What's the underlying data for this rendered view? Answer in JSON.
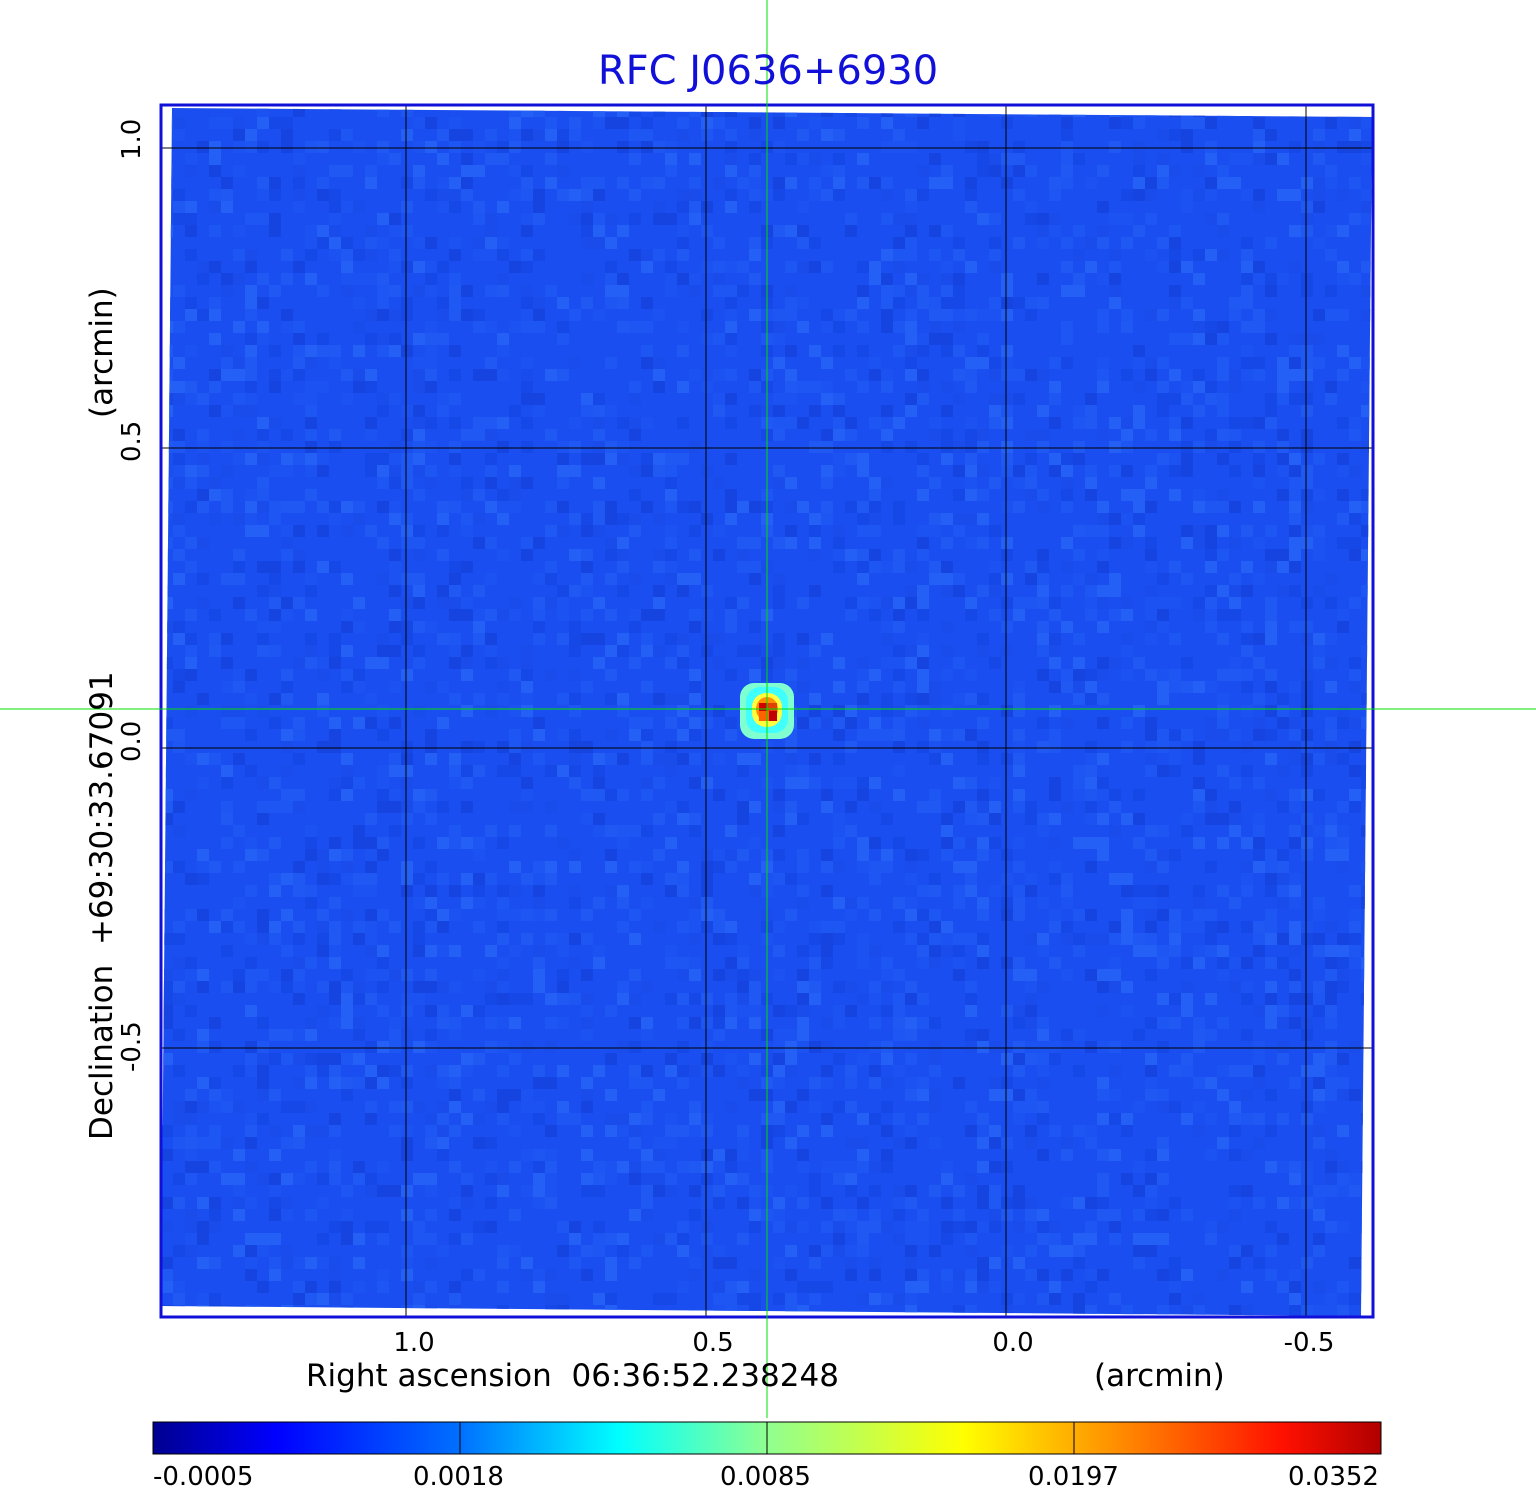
{
  "title": "RFC J0636+6930",
  "x_axis": {
    "label_prefix": "Right ascension",
    "center_value": "06:36:52.238248",
    "unit": "(arcmin)",
    "ticks": [
      "1.0",
      "0.5",
      "0.0",
      "-0.5"
    ]
  },
  "y_axis": {
    "label_prefix": "Declination",
    "center_value": "+69:30:33.67091",
    "unit": "(arcmin)",
    "ticks": [
      "1.0",
      "0.5",
      "0.0",
      "-0.5"
    ]
  },
  "colorbar": {
    "ticks": [
      "-0.0005",
      "0.0018",
      "0.0085",
      "0.0197",
      "0.0352"
    ],
    "colormap": [
      "#000080",
      "#0000ff",
      "#0080ff",
      "#00ffff",
      "#80ff80",
      "#ffff00",
      "#ff8000",
      "#ff0000",
      "#800000"
    ]
  },
  "image": {
    "description_colors": {
      "background": "#1a4ef0",
      "grid": "#000000",
      "crosshair": "#00e000",
      "frame": "#1010d8"
    },
    "source_peak": {
      "ra_offset_arcmin": 0.4,
      "dec_offset_arcmin": 0.06
    }
  }
}
